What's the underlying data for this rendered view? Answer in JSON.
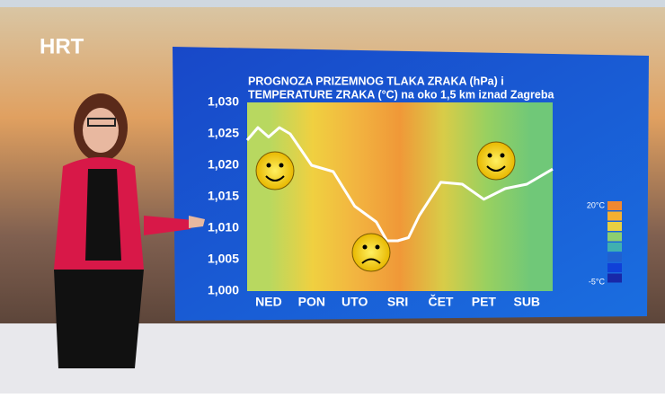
{
  "logo": "HRT",
  "chart_data": {
    "type": "line",
    "title_lines": [
      "PROGNOZA PRIZEMNOG TLAKA ZRAKA (hPa) i",
      "TEMPERATURE ZRAKA (°C) na oko 1,5 km iznad Zagreba"
    ],
    "x": [
      -0.5,
      -0.25,
      0,
      0.25,
      0.5,
      1,
      1.5,
      2,
      2.5,
      2.75,
      3,
      3.25,
      3.5,
      4,
      4.5,
      5,
      5.5,
      6,
      6.6
    ],
    "values": [
      1024,
      1026,
      1024.5,
      1026,
      1025,
      1020,
      1019,
      1013.5,
      1011,
      1008,
      1008,
      1008.5,
      1012,
      1017.3,
      1017,
      1014.6,
      1016.3,
      1017,
      1019.4
    ],
    "color": "#ffffff",
    "xlim": [
      -0.5,
      6.6
    ],
    "xticks": [
      {
        "value": 0,
        "label": "NED"
      },
      {
        "value": 1,
        "label": "PON"
      },
      {
        "value": 2,
        "label": "UTO"
      },
      {
        "value": 3,
        "label": "SRI"
      },
      {
        "value": 4,
        "label": "ČET"
      },
      {
        "value": 5,
        "label": "PET"
      },
      {
        "value": 6,
        "label": "SUB"
      }
    ],
    "ylim": [
      1000,
      1030
    ],
    "yticks": [
      {
        "value": 1000,
        "label": "1,000"
      },
      {
        "value": 1005,
        "label": "1,005"
      },
      {
        "value": 1010,
        "label": "1,010"
      },
      {
        "value": 1015,
        "label": "1,015"
      },
      {
        "value": 1020,
        "label": "1,020"
      },
      {
        "value": 1025,
        "label": "1,025"
      },
      {
        "value": 1030,
        "label": "1,030"
      }
    ],
    "background_colors": [
      "#b8d860",
      "#f0d040",
      "#f2b440",
      "#f09838",
      "#d8cc48",
      "#98d060",
      "#70c878"
    ],
    "temperature_legend": {
      "labels": [
        "20°C",
        "-5°C"
      ],
      "colors": [
        "#f08830",
        "#f5b030",
        "#e8d040",
        "#8ccf70",
        "#40b0b0",
        "#2060d0",
        "#1040d8",
        "#1828a8"
      ]
    }
  }
}
